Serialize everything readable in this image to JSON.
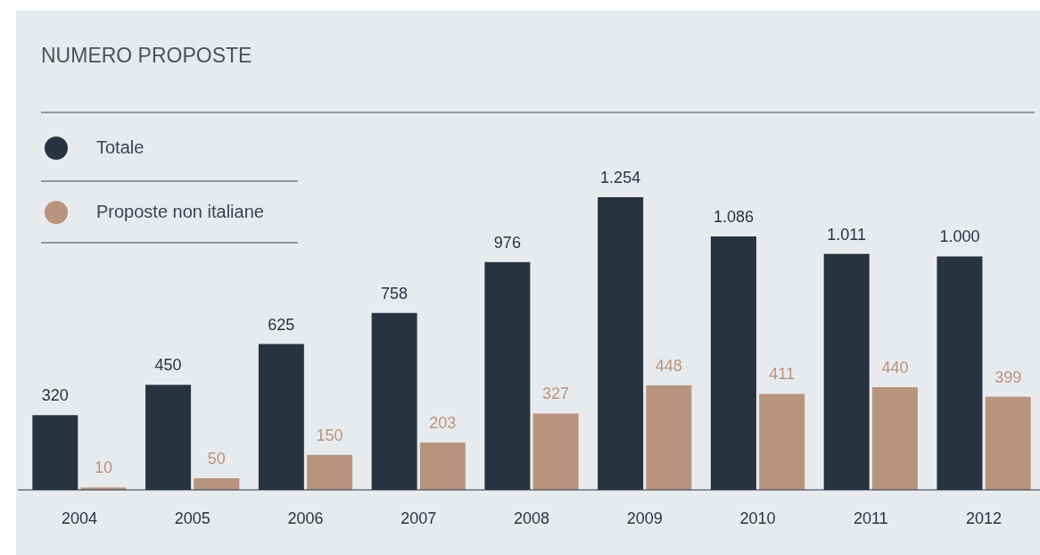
{
  "chart_data": {
    "type": "bar",
    "title": "NUMERO PROPOSTE",
    "categories": [
      "2004",
      "2005",
      "2006",
      "2007",
      "2008",
      "2009",
      "2010",
      "2011",
      "2012"
    ],
    "series": [
      {
        "name": "Totale",
        "color": "#283341",
        "values": [
          320,
          450,
          625,
          758,
          976,
          1254,
          1086,
          1011,
          1000
        ],
        "value_labels": [
          "320",
          "450",
          "625",
          "758",
          "976",
          "1.254",
          "1.086",
          "1.011",
          "1.000"
        ]
      },
      {
        "name": "Proposte non italiane",
        "color": "#b8947e",
        "values": [
          10,
          50,
          150,
          203,
          327,
          448,
          411,
          440,
          399
        ],
        "value_labels": [
          "10",
          "50",
          "150",
          "203",
          "327",
          "448",
          "411",
          "440",
          "399"
        ]
      }
    ],
    "legend": "top left",
    "grid": false
  }
}
